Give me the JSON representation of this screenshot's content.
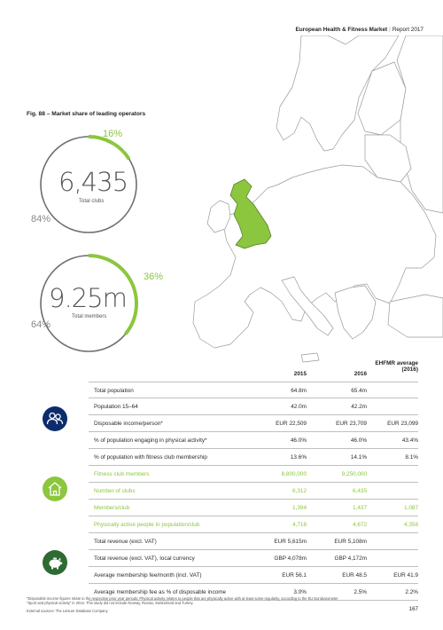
{
  "header": {
    "title": "European Health & Fitness Market",
    "separator": "|",
    "report": "Report 2017"
  },
  "figure": {
    "title": "Fig. 88 – Market share of leading operators"
  },
  "donuts": [
    {
      "value": "6,435",
      "label": "Total clubs",
      "share_pct": "16%",
      "other_pct": "84%",
      "share_fraction": 0.16
    },
    {
      "value": "9.25m",
      "label": "Total members",
      "share_pct": "36%",
      "other_pct": "64%",
      "share_fraction": 0.36
    }
  ],
  "table": {
    "headers": {
      "col1": "2015",
      "col2": "2016",
      "col3_line1": "EHFMR average",
      "col3_line2": "(2016)"
    },
    "rows": [
      {
        "label": "Total population",
        "v1": "64.8m",
        "v2": "65.4m",
        "v3": ""
      },
      {
        "label": "Population 15–64",
        "v1": "42.0m",
        "v2": "42.2m",
        "v3": ""
      },
      {
        "label": "Disposable income/person*",
        "v1": "EUR 22,509",
        "v2": "EUR 23,709",
        "v3": "EUR 23,099"
      },
      {
        "label": "% of population engaging in physical activity*",
        "v1": "46.0%",
        "v2": "46.0%",
        "v3": "43.4%"
      },
      {
        "label": "% of population with fitness club membership",
        "v1": "13.6%",
        "v2": "14.1%",
        "v3": "8.1%"
      },
      {
        "label": "Fitness club members",
        "v1": "8,800,000",
        "v2": "9,250,000",
        "v3": ""
      },
      {
        "label": "Number of clubs",
        "v1": "6,312",
        "v2": "6,435",
        "v3": ""
      },
      {
        "label": "Members/club",
        "v1": "1,394",
        "v2": "1,437",
        "v3": "1,087"
      },
      {
        "label": "Physically active people in population/club",
        "v1": "4,718",
        "v2": "4,672",
        "v3": "4,358"
      },
      {
        "label": "Total revenue (excl. VAT)",
        "v1": "EUR 5,615m",
        "v2": "EUR 5,108m",
        "v3": ""
      },
      {
        "label": "Total revenue (excl. VAT), local currency",
        "v1": "GBP 4,078m",
        "v2": "GBP 4,172m",
        "v3": ""
      },
      {
        "label": "Average membership fee/month (incl. VAT)",
        "v1": "EUR 56.1",
        "v2": "EUR 48.5",
        "v3": "EUR 41.9"
      },
      {
        "label": "Average membership fee as % of disposable income",
        "v1": "3.0%",
        "v2": "2.5%",
        "v3": "2.2%"
      }
    ]
  },
  "icons": {
    "group1": "people-icon",
    "group2": "house-icon",
    "group3": "piggy-bank-icon"
  },
  "colors": {
    "green": "#8cc63e",
    "blue": "#0d2c6c",
    "dark_green": "#2e6b34",
    "grey_arc": "#6e6e6e"
  },
  "footnotes": {
    "line1": "*Disposable income figures relate to the respective prior year periods; Physical activity relates to people that are physically active with at least some regularity, according to the EU Eurobarometer",
    "line2": "\"Sport and physical activity\" in 2013. This study did not include Norway, Russia, Switzerland and Turkey.",
    "line3": "External sources: The Leisure Database Company"
  },
  "page_number": "167"
}
